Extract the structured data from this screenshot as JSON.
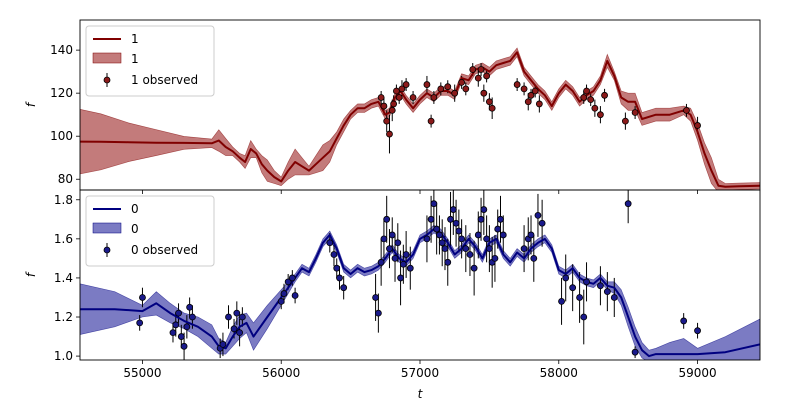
{
  "chart_data": [
    {
      "type": "line",
      "panel": "top",
      "ylabel": "f",
      "xlim": [
        54550,
        59450
      ],
      "ylim": [
        75,
        154
      ],
      "yticks": [
        80,
        100,
        120,
        140
      ],
      "legend": {
        "position": "top-left",
        "entries": [
          "1",
          "1",
          "1 observed"
        ]
      },
      "colors": {
        "line": "#800000",
        "band": "#b45a5a",
        "points": "#8b1a1a"
      },
      "model": {
        "name": "1",
        "x": [
          54550,
          54700,
          54900,
          55100,
          55300,
          55500,
          55550,
          55600,
          55650,
          55700,
          55740,
          55780,
          55820,
          55860,
          55900,
          55950,
          56000,
          56050,
          56100,
          56150,
          56200,
          56250,
          56300,
          56350,
          56400,
          56450,
          56500,
          56550,
          56600,
          56650,
          56700,
          56750,
          56780,
          56820,
          56860,
          56900,
          56950,
          57000,
          57050,
          57100,
          57150,
          57200,
          57250,
          57300,
          57350,
          57400,
          57450,
          57500,
          57550,
          57600,
          57650,
          57700,
          57750,
          57800,
          57850,
          57900,
          57950,
          58000,
          58050,
          58100,
          58150,
          58200,
          58250,
          58300,
          58350,
          58400,
          58450,
          58500,
          58550,
          58600,
          58700,
          58800,
          58900,
          58950,
          59000,
          59050,
          59100,
          59150,
          59200,
          59300,
          59450
        ],
        "y": [
          97.5,
          97.4,
          97.2,
          97.0,
          96.9,
          96.7,
          98.0,
          95.0,
          93.0,
          90.0,
          88.0,
          94.0,
          92.0,
          87.0,
          84.0,
          81.0,
          79.0,
          84.0,
          88.0,
          86.0,
          84.0,
          87.0,
          90.0,
          93.0,
          99.0,
          105.0,
          110.0,
          113.0,
          113.0,
          115.0,
          116.0,
          110.0,
          111.0,
          118.0,
          121.0,
          117.0,
          113.0,
          117.0,
          120.0,
          118.0,
          121.0,
          121.0,
          119.0,
          127.0,
          126.0,
          131.0,
          132.0,
          130.0,
          133.0,
          134.0,
          135.0,
          139.0,
          130.0,
          126.0,
          122.0,
          119.0,
          114.0,
          120.0,
          124.0,
          121.0,
          116.0,
          119.0,
          121.0,
          126.0,
          135.0,
          128.0,
          118.0,
          116.0,
          116.0,
          108.0,
          110.0,
          110.0,
          112.0,
          110.0,
          102.0,
          92.0,
          84.0,
          77.0,
          76.5,
          76.7,
          77.0
        ],
        "band": [
          15,
          13,
          9,
          6,
          3,
          2,
          5,
          4,
          2,
          2,
          3,
          4,
          2,
          4,
          5,
          3,
          2,
          4,
          6,
          4,
          2,
          4,
          6,
          5,
          3,
          3,
          2,
          2,
          2,
          2,
          2,
          2,
          2,
          2,
          2,
          2,
          2,
          2,
          2,
          2,
          2,
          2,
          2,
          2,
          2,
          2,
          2,
          2,
          2,
          2,
          2,
          2,
          2,
          2,
          2,
          2,
          2,
          2,
          2,
          2,
          2,
          2,
          2,
          2,
          3,
          2,
          3,
          4,
          4,
          3,
          3,
          3,
          2,
          3,
          4,
          5,
          6,
          3,
          1.5,
          1.5,
          1.5
        ]
      },
      "observed": {
        "name": "1 observed",
        "x": [
          56720,
          56740,
          56760,
          56780,
          56800,
          56810,
          56830,
          56850,
          56870,
          56900,
          56950,
          57050,
          57080,
          57100,
          57150,
          57200,
          57250,
          57300,
          57330,
          57380,
          57420,
          57440,
          57460,
          57480,
          57500,
          57520,
          57700,
          57750,
          57780,
          57800,
          57830,
          57860,
          58180,
          58200,
          58230,
          58260,
          58300,
          58330,
          58480,
          58550,
          58920,
          59000
        ],
        "y": [
          118,
          114,
          107,
          101,
          112,
          115,
          121,
          118,
          122,
          124,
          118,
          124,
          107,
          118,
          122,
          123,
          120,
          125,
          122,
          131,
          127,
          131,
          120,
          128,
          116,
          113,
          124,
          122,
          116,
          119,
          121,
          115,
          118,
          121,
          117,
          113,
          110,
          119,
          107,
          111,
          112,
          105
        ],
        "err": [
          3,
          4,
          5,
          9,
          5,
          4,
          3,
          3,
          4,
          3,
          3,
          4,
          3,
          3,
          3,
          3,
          4,
          3,
          3,
          3,
          4,
          3,
          4,
          3,
          4,
          5,
          3,
          3,
          4,
          3,
          3,
          4,
          3,
          3,
          3,
          4,
          4,
          3,
          4,
          3,
          3,
          4
        ]
      }
    },
    {
      "type": "line",
      "panel": "bottom",
      "xlabel": "t",
      "ylabel": "f",
      "xlim": [
        54550,
        59450
      ],
      "ylim": [
        0.98,
        1.85
      ],
      "xticks": [
        55000,
        56000,
        57000,
        58000,
        59000
      ],
      "yticks": [
        1.0,
        1.2,
        1.4,
        1.6,
        1.8
      ],
      "legend": {
        "position": "top-left",
        "entries": [
          "0",
          "0",
          "0 observed"
        ]
      },
      "colors": {
        "line": "#000080",
        "band": "#5a5ab4",
        "points": "#1a1a8b"
      },
      "model": {
        "name": "0",
        "x": [
          54550,
          54800,
          55000,
          55100,
          55200,
          55300,
          55400,
          55500,
          55550,
          55600,
          55650,
          55700,
          55750,
          55800,
          55900,
          56000,
          56050,
          56100,
          56150,
          56200,
          56250,
          56300,
          56350,
          56400,
          56450,
          56500,
          56550,
          56600,
          56650,
          56700,
          56750,
          56800,
          56850,
          56900,
          56950,
          57000,
          57050,
          57100,
          57150,
          57200,
          57250,
          57300,
          57350,
          57400,
          57450,
          57500,
          57550,
          57600,
          57650,
          57700,
          57750,
          57800,
          57850,
          57900,
          57950,
          58000,
          58050,
          58100,
          58150,
          58200,
          58250,
          58300,
          58350,
          58400,
          58450,
          58500,
          58550,
          58600,
          58650,
          58700,
          58800,
          58900,
          59000,
          59200,
          59450
        ],
        "y": [
          1.24,
          1.24,
          1.23,
          1.27,
          1.22,
          1.18,
          1.15,
          1.1,
          1.05,
          1.04,
          1.1,
          1.15,
          1.17,
          1.1,
          1.2,
          1.3,
          1.35,
          1.4,
          1.45,
          1.43,
          1.5,
          1.58,
          1.62,
          1.55,
          1.45,
          1.42,
          1.45,
          1.43,
          1.44,
          1.46,
          1.5,
          1.55,
          1.5,
          1.48,
          1.52,
          1.6,
          1.62,
          1.65,
          1.63,
          1.58,
          1.52,
          1.55,
          1.6,
          1.56,
          1.5,
          1.58,
          1.6,
          1.52,
          1.48,
          1.53,
          1.5,
          1.55,
          1.58,
          1.6,
          1.55,
          1.44,
          1.42,
          1.45,
          1.4,
          1.38,
          1.37,
          1.4,
          1.36,
          1.35,
          1.3,
          1.2,
          1.1,
          1.03,
          1.0,
          1.01,
          1.01,
          1.01,
          1.01,
          1.02,
          1.06
        ],
        "band": [
          0.13,
          0.09,
          0.03,
          0.06,
          0.05,
          0.04,
          0.05,
          0.06,
          0.04,
          0.03,
          0.05,
          0.06,
          0.05,
          0.07,
          0.06,
          0.04,
          0.03,
          0.02,
          0.02,
          0.02,
          0.02,
          0.02,
          0.02,
          0.02,
          0.02,
          0.02,
          0.02,
          0.02,
          0.02,
          0.02,
          0.02,
          0.02,
          0.02,
          0.02,
          0.02,
          0.02,
          0.02,
          0.02,
          0.02,
          0.02,
          0.02,
          0.02,
          0.02,
          0.02,
          0.02,
          0.02,
          0.02,
          0.02,
          0.02,
          0.02,
          0.02,
          0.02,
          0.02,
          0.02,
          0.02,
          0.02,
          0.02,
          0.02,
          0.02,
          0.02,
          0.02,
          0.02,
          0.02,
          0.03,
          0.04,
          0.05,
          0.05,
          0.04,
          0.03,
          0.03,
          0.06,
          0.08,
          0.03,
          0.08,
          0.13
        ]
      },
      "observed": {
        "name": "0 observed",
        "x": [
          54980,
          55000,
          55220,
          55240,
          55260,
          55280,
          55300,
          55320,
          55340,
          55360,
          55560,
          55580,
          55620,
          55660,
          55680,
          55700,
          55720,
          56000,
          56020,
          56050,
          56080,
          56100,
          56350,
          56380,
          56400,
          56420,
          56450,
          56680,
          56700,
          56720,
          56740,
          56760,
          56780,
          56800,
          56820,
          56840,
          56860,
          56880,
          56900,
          56930,
          57050,
          57080,
          57100,
          57120,
          57140,
          57160,
          57180,
          57200,
          57220,
          57240,
          57260,
          57280,
          57300,
          57330,
          57360,
          57390,
          57420,
          57440,
          57460,
          57480,
          57500,
          57520,
          57540,
          57560,
          57580,
          57600,
          57750,
          57780,
          57800,
          57820,
          57850,
          57880,
          58020,
          58050,
          58100,
          58150,
          58180,
          58200,
          58300,
          58350,
          58400,
          58500,
          58550,
          58900,
          59000
        ],
        "y": [
          1.17,
          1.3,
          1.12,
          1.16,
          1.22,
          1.1,
          1.05,
          1.15,
          1.25,
          1.2,
          1.04,
          1.06,
          1.2,
          1.14,
          1.22,
          1.12,
          1.2,
          1.28,
          1.32,
          1.38,
          1.4,
          1.31,
          1.58,
          1.52,
          1.45,
          1.4,
          1.35,
          1.3,
          1.22,
          1.48,
          1.6,
          1.7,
          1.55,
          1.62,
          1.5,
          1.58,
          1.4,
          1.47,
          1.52,
          1.45,
          1.6,
          1.7,
          1.78,
          1.65,
          1.62,
          1.58,
          1.55,
          1.48,
          1.7,
          1.75,
          1.68,
          1.64,
          1.6,
          1.55,
          1.52,
          1.45,
          1.62,
          1.7,
          1.75,
          1.6,
          1.55,
          1.48,
          1.5,
          1.65,
          1.7,
          1.62,
          1.55,
          1.6,
          1.62,
          1.5,
          1.72,
          1.68,
          1.28,
          1.4,
          1.35,
          1.3,
          1.2,
          1.38,
          1.36,
          1.33,
          1.3,
          1.78,
          1.02,
          1.18,
          1.13
        ],
        "err": [
          0.04,
          0.05,
          0.05,
          0.06,
          0.05,
          0.06,
          0.07,
          0.06,
          0.05,
          0.06,
          0.05,
          0.06,
          0.06,
          0.05,
          0.06,
          0.07,
          0.05,
          0.04,
          0.05,
          0.04,
          0.04,
          0.04,
          0.05,
          0.06,
          0.05,
          0.06,
          0.06,
          0.12,
          0.1,
          0.12,
          0.1,
          0.12,
          0.1,
          0.09,
          0.12,
          0.1,
          0.14,
          0.1,
          0.12,
          0.11,
          0.12,
          0.12,
          0.12,
          0.13,
          0.1,
          0.12,
          0.11,
          0.12,
          0.14,
          0.13,
          0.12,
          0.11,
          0.1,
          0.12,
          0.11,
          0.14,
          0.12,
          0.11,
          0.13,
          0.12,
          0.12,
          0.13,
          0.12,
          0.1,
          0.12,
          0.1,
          0.12,
          0.11,
          0.1,
          0.12,
          0.11,
          0.12,
          0.12,
          0.12,
          0.12,
          0.13,
          0.14,
          0.1,
          0.1,
          0.1,
          0.1,
          0.1,
          0.03,
          0.04,
          0.04
        ]
      }
    }
  ]
}
